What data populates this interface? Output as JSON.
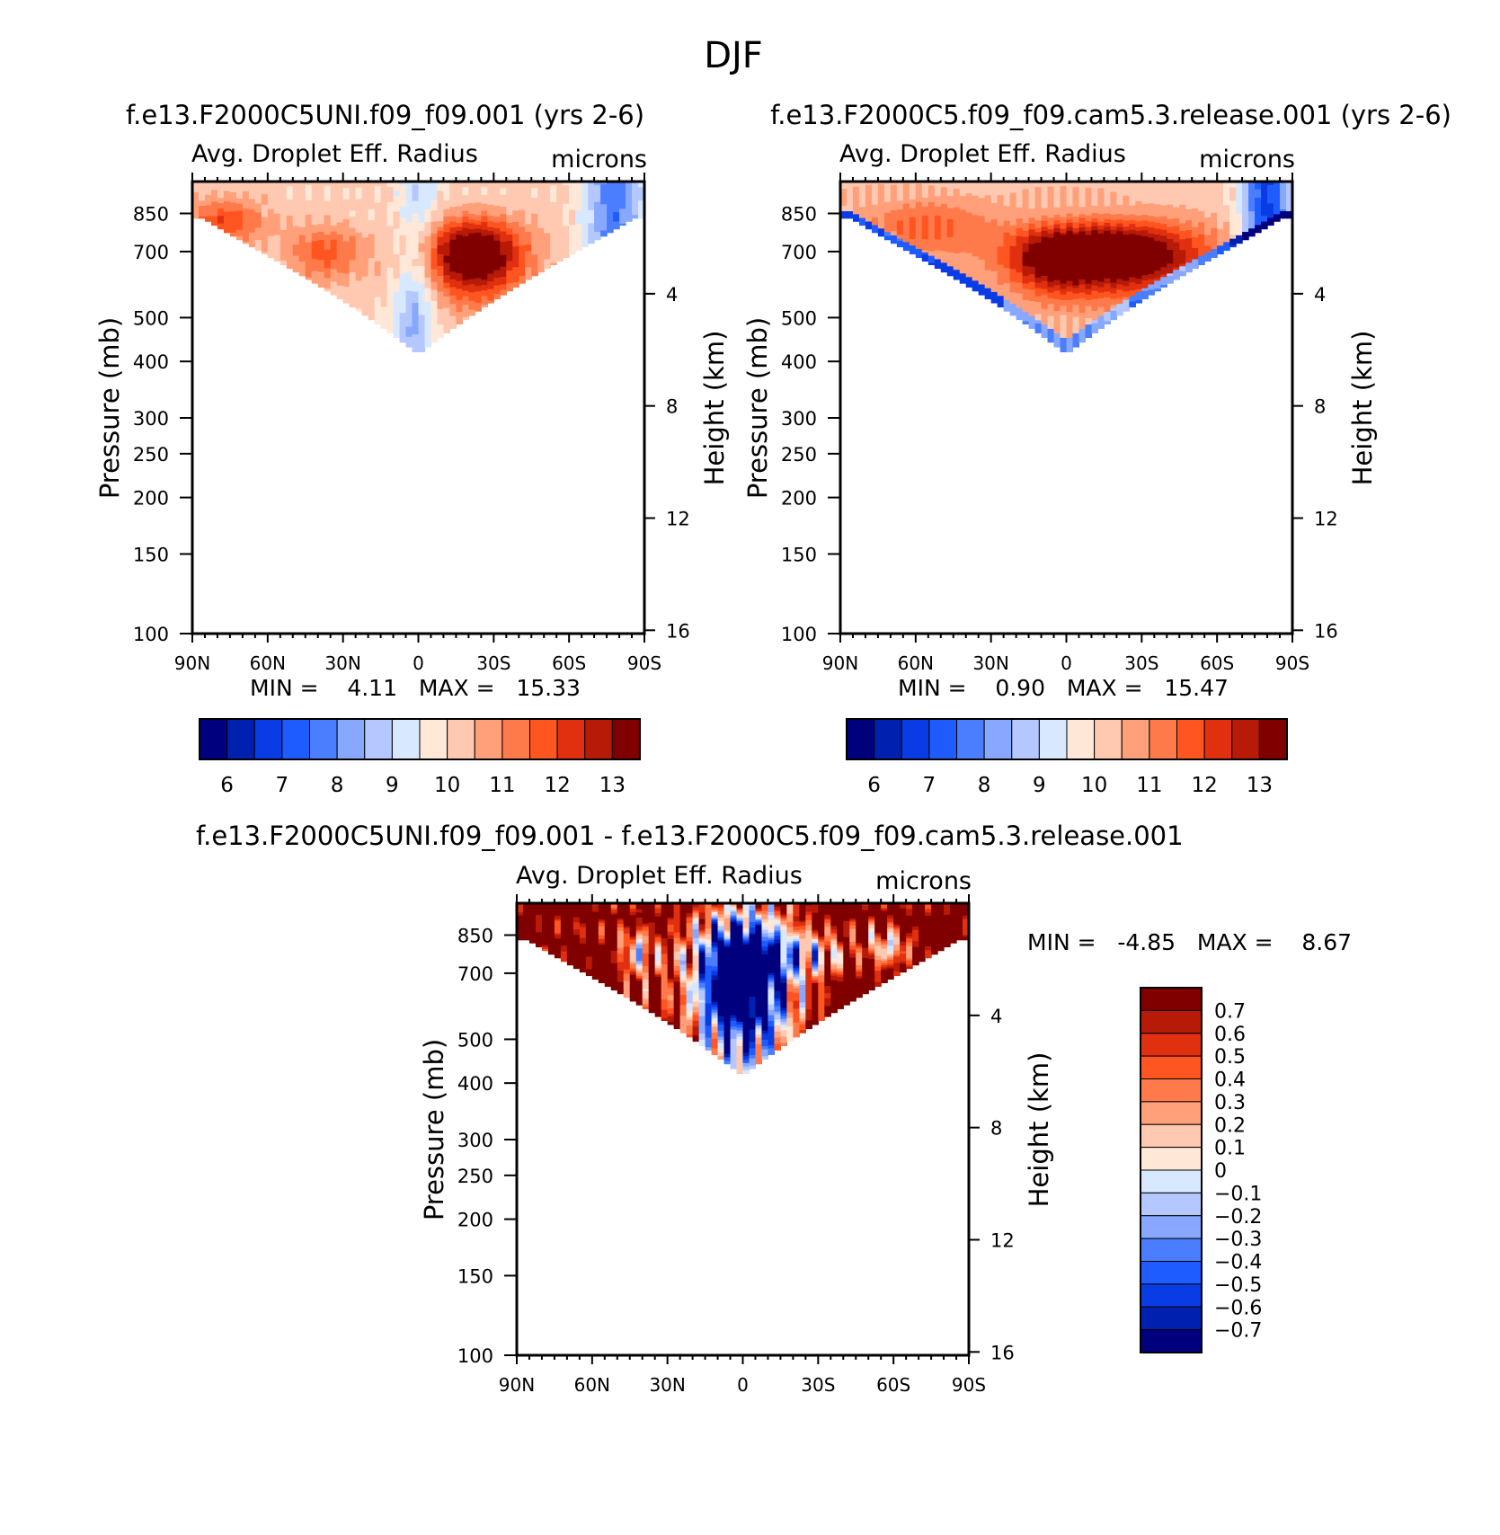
{
  "figure": {
    "title": "DJF"
  },
  "chart_data": [
    {
      "type": "heatmap",
      "id": "top-left",
      "title": "f.e13.F2000C5UNI.f09_f09.001 (yrs 2-6)",
      "subtitle_left": "Avg. Droplet Eff. Radius",
      "subtitle_right": "microns",
      "ylabel": "Pressure (mb)",
      "ylabel_right": "Height (km)",
      "x_ticks": [
        "90N",
        "60N",
        "30N",
        "0",
        "30S",
        "60S",
        "90S"
      ],
      "y_ticks": [
        "100",
        "150",
        "200",
        "250",
        "300",
        "400",
        "500",
        "700",
        "850"
      ],
      "height_ticks": [
        "16",
        "12",
        "8",
        "4"
      ],
      "stats": "MIN =    4.11   MAX =   15.33",
      "colorbar_labels": [
        "6",
        "7",
        "8",
        "9",
        "10",
        "11",
        "12",
        "13"
      ],
      "colors": [
        "#00007f",
        "#0020b0",
        "#0a3ce6",
        "#1f5cff",
        "#4a7eff",
        "#88a8ff",
        "#b4c8ff",
        "#d8e8ff",
        "#ffe8d8",
        "#ffc8b0",
        "#ffa07a",
        "#ff7a4a",
        "#ff5520",
        "#e03010",
        "#b81a08",
        "#800000"
      ]
    },
    {
      "type": "heatmap",
      "id": "top-right",
      "title": "f.e13.F2000C5.f09_f09.cam5.3.release.001 (yrs 2-6)",
      "subtitle_left": "Avg. Droplet Eff. Radius",
      "subtitle_right": "microns",
      "ylabel": "Pressure (mb)",
      "ylabel_right": "Height (km)",
      "x_ticks": [
        "90N",
        "60N",
        "30N",
        "0",
        "30S",
        "60S",
        "90S"
      ],
      "y_ticks": [
        "100",
        "150",
        "200",
        "250",
        "300",
        "400",
        "500",
        "700",
        "850"
      ],
      "height_ticks": [
        "16",
        "12",
        "8",
        "4"
      ],
      "stats": "MIN =    0.90   MAX =   15.47",
      "colorbar_labels": [
        "6",
        "7",
        "8",
        "9",
        "10",
        "11",
        "12",
        "13"
      ],
      "colors": [
        "#00007f",
        "#0020b0",
        "#0a3ce6",
        "#1f5cff",
        "#4a7eff",
        "#88a8ff",
        "#b4c8ff",
        "#d8e8ff",
        "#ffe8d8",
        "#ffc8b0",
        "#ffa07a",
        "#ff7a4a",
        "#ff5520",
        "#e03010",
        "#b81a08",
        "#800000"
      ]
    },
    {
      "type": "heatmap",
      "id": "bottom",
      "title": "f.e13.F2000C5UNI.f09_f09.001 - f.e13.F2000C5.f09_f09.cam5.3.release.001",
      "subtitle_left": "Avg. Droplet Eff. Radius",
      "subtitle_right": "microns",
      "ylabel": "Pressure (mb)",
      "ylabel_right": "Height (km)",
      "x_ticks": [
        "90N",
        "60N",
        "30N",
        "0",
        "30S",
        "60S",
        "90S"
      ],
      "y_ticks": [
        "100",
        "150",
        "200",
        "250",
        "300",
        "400",
        "500",
        "700",
        "850"
      ],
      "height_ticks": [
        "16",
        "12",
        "8",
        "4"
      ],
      "stats": "MIN =   -4.85   MAX =    8.67",
      "colorbar_labels": [
        "0.7",
        "0.6",
        "0.5",
        "0.4",
        "0.3",
        "0.2",
        "0.1",
        "0",
        "-0.1",
        "-0.2",
        "-0.3",
        "-0.4",
        "-0.5",
        "-0.6",
        "-0.7"
      ],
      "colors": [
        "#800000",
        "#b81a08",
        "#e03010",
        "#ff5520",
        "#ff7a4a",
        "#ffa07a",
        "#ffc8b0",
        "#ffe8d8",
        "#d8e8ff",
        "#b4c8ff",
        "#88a8ff",
        "#4a7eff",
        "#1f5cff",
        "#0a3ce6",
        "#0020b0",
        "#00007f"
      ]
    }
  ]
}
